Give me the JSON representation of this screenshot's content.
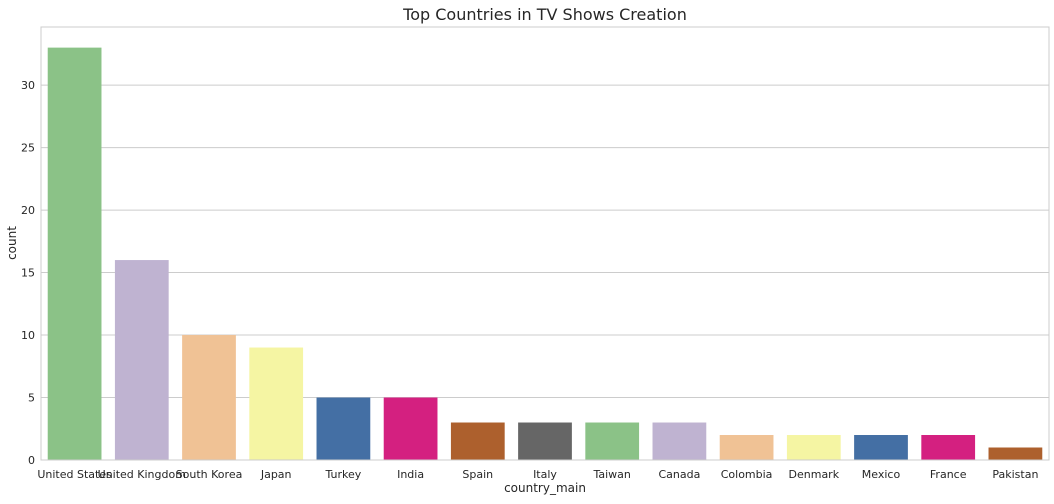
{
  "chart_data": {
    "type": "bar",
    "title": "Top Countries in TV Shows Creation",
    "xlabel": "country_main",
    "ylabel": "count",
    "categories": [
      "United States",
      "United Kingdom",
      "South Korea",
      "Japan",
      "Turkey",
      "India",
      "Spain",
      "Italy",
      "Taiwan",
      "Canada",
      "Colombia",
      "Denmark",
      "Mexico",
      "France",
      "Pakistan"
    ],
    "values": [
      33,
      16,
      10,
      9,
      5,
      5,
      3,
      3,
      3,
      3,
      2,
      2,
      2,
      2,
      1
    ],
    "colors": [
      "#8bc287",
      "#bfb3d1",
      "#f0c295",
      "#f5f5a3",
      "#446fa4",
      "#d42080",
      "#ad602d",
      "#666666",
      "#8bc287",
      "#bfb3d1",
      "#f0c295",
      "#f5f5a3",
      "#446fa4",
      "#d42080",
      "#ad602d"
    ],
    "ylim": [
      0,
      34.65
    ],
    "yticks": [
      0,
      5,
      10,
      15,
      20,
      25,
      30
    ],
    "grid": "horizontal",
    "legend": "none"
  }
}
